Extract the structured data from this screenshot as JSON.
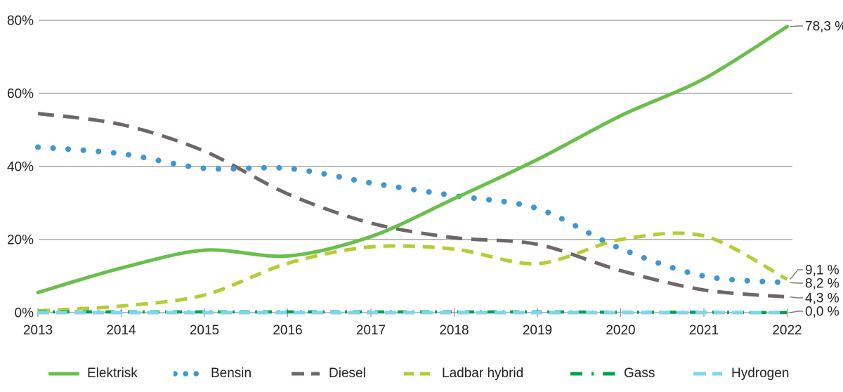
{
  "chart_data": {
    "type": "line",
    "title": "",
    "x_unit": "year",
    "y_unit": "percent",
    "ylim": [
      0,
      80
    ],
    "grid": "horizontal",
    "legend_position": "bottom",
    "x_labels": [
      "2013",
      "2014",
      "2015",
      "2016",
      "2017",
      "2018",
      "2019",
      "2020",
      "2021",
      "2022"
    ],
    "y_ticks": [
      {
        "value": 0,
        "label": "0%"
      },
      {
        "value": 20,
        "label": "20%"
      },
      {
        "value": 40,
        "label": "40%"
      },
      {
        "value": 60,
        "label": "60%"
      },
      {
        "value": 80,
        "label": "80%"
      }
    ],
    "series": [
      {
        "name": "Elektrisk",
        "color": "#69bf4b",
        "line_style": "solid",
        "values": [
          5.5,
          12.2,
          17.1,
          15.5,
          20.8,
          31.2,
          41.9,
          53.9,
          64.0,
          78.3
        ],
        "end_label": "78,3 %"
      },
      {
        "name": "Bensin",
        "color": "#3e96d2",
        "line_style": "dotted",
        "values": [
          45.3,
          43.5,
          39.5,
          39.5,
          35.5,
          32.0,
          28.5,
          17.5,
          10.0,
          8.2
        ],
        "end_label": "8,2 %"
      },
      {
        "name": "Diesel",
        "color": "#6f6667",
        "line_style": "dashed",
        "values": [
          54.5,
          51.5,
          44.2,
          32.5,
          24.5,
          20.5,
          18.7,
          11.5,
          6.2,
          4.3
        ],
        "end_label": "4,3 %"
      },
      {
        "name": "Ladbar hybrid",
        "color": "#b5cc35",
        "line_style": "dashed",
        "values": [
          0.5,
          1.8,
          4.8,
          13.5,
          18.0,
          17.4,
          13.4,
          20.0,
          21.0,
          9.1
        ],
        "end_label": "9,1 %"
      },
      {
        "name": "Gass",
        "color": "#00a14f",
        "line_style": "dash-dot",
        "values": [
          0.2,
          0.2,
          0.2,
          0.2,
          0.2,
          0.2,
          0.2,
          0.1,
          0.1,
          0.0
        ],
        "end_label": null
      },
      {
        "name": "Hydrogen",
        "color": "#7ed5f2",
        "line_style": "dashed",
        "values": [
          0.0,
          0.0,
          0.0,
          0.0,
          0.0,
          0.0,
          0.0,
          0.0,
          0.0,
          0.0
        ],
        "end_label": "0,0 %"
      }
    ]
  }
}
